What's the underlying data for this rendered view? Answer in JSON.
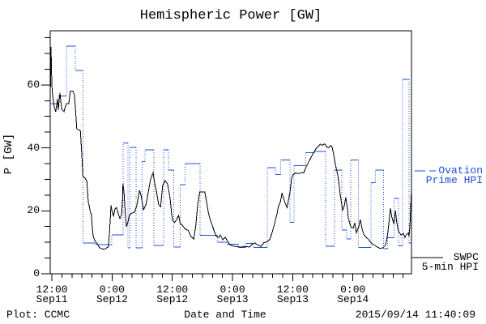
{
  "title": "Hemispheric Power [GW]",
  "footer": {
    "left": "Plot: CCMC",
    "right": "2015/09/14 11:40:09"
  },
  "legend": {
    "ovation": {
      "line1": "Ovation",
      "line2": "Prime HPI"
    },
    "swpc": {
      "line1": "SWPC",
      "line2": "5-min HPI"
    }
  },
  "colors": {
    "ovation_blue": "#1f4fd8",
    "swpc_black": "#000000",
    "frame": "#000000",
    "background": "#ffffff"
  },
  "chart_data": {
    "type": "line",
    "title": "Hemispheric Power [GW]",
    "xlabel": "Date and Time",
    "ylabel": "P [GW]",
    "ylim": [
      0,
      77.2
    ],
    "yticks": [
      0,
      20,
      40,
      60
    ],
    "y_minor_step": 5,
    "x_hours_span": 72,
    "x_start_label": "2015/09/11 11:40",
    "x_minor_step_hours": 2,
    "x_ticks": [
      {
        "hour": 0.333,
        "time": "12:00",
        "date": "Sep11"
      },
      {
        "hour": 12.333,
        "time": "0:00",
        "date": "Sep12"
      },
      {
        "hour": 24.333,
        "time": "12:00",
        "date": "Sep12"
      },
      {
        "hour": 36.333,
        "time": "0:00",
        "date": "Sep13"
      },
      {
        "hour": 48.333,
        "time": "12:00",
        "date": "Sep13"
      },
      {
        "hour": 60.333,
        "time": "0:00",
        "date": "Sep14"
      }
    ],
    "series": [
      {
        "name": "Ovation Prime HPI",
        "color": "#1f4fd8",
        "style": "step-dotted",
        "points": [
          [
            0,
            54
          ],
          [
            1.6,
            56.5
          ],
          [
            3.2,
            72.3
          ],
          [
            5.0,
            64.6
          ],
          [
            6.5,
            9.8
          ],
          [
            9.0,
            9.3
          ],
          [
            12.3,
            12.3
          ],
          [
            14.5,
            41.5
          ],
          [
            15.5,
            8.2
          ],
          [
            15.9,
            40.2
          ],
          [
            17.1,
            8.2
          ],
          [
            18.3,
            35.6
          ],
          [
            18.9,
            39.4
          ],
          [
            20.7,
            9.0
          ],
          [
            22.6,
            39.4
          ],
          [
            23.6,
            32.9
          ],
          [
            24.6,
            8.5
          ],
          [
            25.9,
            28.3
          ],
          [
            26.9,
            35.0
          ],
          [
            29.9,
            12.2
          ],
          [
            33.3,
            10.1
          ],
          [
            35.2,
            9.4
          ],
          [
            37.5,
            8.4
          ],
          [
            39.0,
            9.6
          ],
          [
            40.5,
            8.4
          ],
          [
            43.3,
            33.7
          ],
          [
            44.9,
            31.5
          ],
          [
            45.9,
            36.2
          ],
          [
            47.8,
            16.4
          ],
          [
            48.6,
            34.3
          ],
          [
            50.9,
            38.5
          ],
          [
            52.6,
            38.8
          ],
          [
            54.9,
            8.8
          ],
          [
            56.7,
            33
          ],
          [
            58.1,
            13.9
          ],
          [
            59.1,
            11.1
          ],
          [
            59.9,
            36.2
          ],
          [
            61.4,
            8.3
          ],
          [
            63.9,
            29
          ],
          [
            64.8,
            32.9
          ],
          [
            66.4,
            8.0
          ],
          [
            67.2,
            11.4
          ],
          [
            68.5,
            23.9
          ],
          [
            69.4,
            8.9
          ],
          [
            70.2,
            61.7
          ],
          [
            71.5,
            9.8
          ],
          [
            72,
            9.8
          ]
        ]
      },
      {
        "name": "SWPC 5-min HPI",
        "color": "#000000",
        "style": "line",
        "points": [
          [
            0,
            55
          ],
          [
            0.16,
            72
          ],
          [
            0.32,
            60
          ],
          [
            0.48,
            56.5
          ],
          [
            0.8,
            53
          ],
          [
            1.1,
            51.5
          ],
          [
            1.45,
            55.5
          ],
          [
            1.6,
            52
          ],
          [
            1.94,
            57.5
          ],
          [
            2.26,
            52.5
          ],
          [
            2.74,
            51.5
          ],
          [
            3.2,
            54
          ],
          [
            3.7,
            54
          ],
          [
            4.0,
            58
          ],
          [
            4.5,
            58
          ],
          [
            4.8,
            57
          ],
          [
            5.0,
            53
          ],
          [
            5.3,
            46
          ],
          [
            6.0,
            45.5
          ],
          [
            6.3,
            38
          ],
          [
            6.5,
            31
          ],
          [
            6.9,
            30.5
          ],
          [
            7.3,
            29.5
          ],
          [
            7.45,
            26
          ],
          [
            7.6,
            22.5
          ],
          [
            7.75,
            21.8
          ],
          [
            8.0,
            19.5
          ],
          [
            8.2,
            19
          ],
          [
            8.35,
            15.5
          ],
          [
            8.55,
            12
          ],
          [
            8.9,
            10.5
          ],
          [
            9.3,
            9.8
          ],
          [
            9.8,
            8.3
          ],
          [
            10.4,
            7.9
          ],
          [
            10.9,
            7.8
          ],
          [
            11.3,
            8.3
          ],
          [
            11.6,
            8.6
          ],
          [
            11.8,
            13
          ],
          [
            12.0,
            18
          ],
          [
            12.1,
            21.8
          ],
          [
            12.3,
            20
          ],
          [
            12.6,
            18.4
          ],
          [
            12.9,
            20.5
          ],
          [
            13.2,
            21
          ],
          [
            13.6,
            19
          ],
          [
            13.9,
            17.5
          ],
          [
            14.2,
            18.7
          ],
          [
            14.4,
            23
          ],
          [
            14.5,
            28.6
          ],
          [
            14.7,
            26
          ],
          [
            15.0,
            18.3
          ],
          [
            15.2,
            15
          ],
          [
            15.5,
            16.5
          ],
          [
            15.8,
            18.7
          ],
          [
            16.3,
            19.3
          ],
          [
            16.8,
            19.5
          ],
          [
            17.3,
            22
          ],
          [
            17.8,
            26.5
          ],
          [
            18.1,
            25
          ],
          [
            18.6,
            20.3
          ],
          [
            19.1,
            22.1
          ],
          [
            19.5,
            25.5
          ],
          [
            20.0,
            30
          ],
          [
            20.5,
            32.1
          ],
          [
            20.8,
            29
          ],
          [
            21.2,
            26
          ],
          [
            21.6,
            22
          ],
          [
            22.0,
            21.3
          ],
          [
            22.4,
            28
          ],
          [
            22.9,
            29.6
          ],
          [
            23.4,
            28.5
          ],
          [
            23.9,
            24
          ],
          [
            24.2,
            19
          ],
          [
            24.4,
            17
          ],
          [
            24.8,
            16.3
          ],
          [
            25.2,
            17.2
          ],
          [
            25.6,
            18.5
          ],
          [
            25.9,
            16
          ],
          [
            26.3,
            15.5
          ],
          [
            26.9,
            14.2
          ],
          [
            27.5,
            13.8
          ],
          [
            28.0,
            12
          ],
          [
            28.6,
            11
          ],
          [
            29.0,
            15
          ],
          [
            29.4,
            22
          ],
          [
            29.8,
            26
          ],
          [
            30.8,
            26
          ],
          [
            31.2,
            22.5
          ],
          [
            31.5,
            19.6
          ],
          [
            31.9,
            17
          ],
          [
            32.3,
            15.4
          ],
          [
            32.8,
            13
          ],
          [
            33.1,
            11.9
          ],
          [
            33.6,
            11.5
          ],
          [
            33.9,
            12.3
          ],
          [
            34.4,
            10.8
          ],
          [
            34.9,
            11.6
          ],
          [
            35.4,
            10.2
          ],
          [
            35.8,
            9.2
          ],
          [
            36.5,
            8.8
          ],
          [
            37.3,
            8.6
          ],
          [
            38.1,
            8.5
          ],
          [
            38.9,
            8.7
          ],
          [
            39.7,
            8.5
          ],
          [
            40.4,
            9.6
          ],
          [
            40.8,
            9.8
          ],
          [
            41.3,
            9.2
          ],
          [
            42.0,
            8.7
          ],
          [
            42.6,
            9.9
          ],
          [
            43.3,
            10.2
          ],
          [
            43.8,
            11
          ],
          [
            44.2,
            13
          ],
          [
            44.7,
            15.8
          ],
          [
            45.2,
            19
          ],
          [
            45.5,
            21.5
          ],
          [
            45.9,
            23
          ],
          [
            46.2,
            25.7
          ],
          [
            46.5,
            24
          ],
          [
            46.8,
            22.5
          ],
          [
            47.2,
            21
          ],
          [
            47.5,
            23.5
          ],
          [
            47.8,
            26
          ],
          [
            48.1,
            30.3
          ],
          [
            48.4,
            31.5
          ],
          [
            48.9,
            32
          ],
          [
            49.6,
            31.8
          ],
          [
            50.1,
            32.2
          ],
          [
            50.5,
            32
          ],
          [
            51.0,
            33.9
          ],
          [
            51.5,
            35.5
          ],
          [
            52.0,
            37
          ],
          [
            52.5,
            38.5
          ],
          [
            53.0,
            39.8
          ],
          [
            53.3,
            40.3
          ],
          [
            53.8,
            41.2
          ],
          [
            54.2,
            40.8
          ],
          [
            54.7,
            41.3
          ],
          [
            55.2,
            40.2
          ],
          [
            55.5,
            40
          ],
          [
            55.9,
            40.8
          ],
          [
            56.2,
            40.2
          ],
          [
            56.5,
            37.8
          ],
          [
            56.8,
            35
          ],
          [
            57.3,
            31.5
          ],
          [
            57.6,
            28
          ],
          [
            57.8,
            25.2
          ],
          [
            58.3,
            20.2
          ],
          [
            58.6,
            21.5
          ],
          [
            58.9,
            24.3
          ],
          [
            59.3,
            20
          ],
          [
            59.4,
            17.7
          ],
          [
            59.9,
            15
          ],
          [
            60.4,
            14.5
          ],
          [
            60.7,
            16.2
          ],
          [
            61.0,
            13
          ],
          [
            61.5,
            15
          ],
          [
            61.8,
            17.2
          ],
          [
            62.2,
            14
          ],
          [
            62.5,
            12.5
          ],
          [
            63.0,
            11.5
          ],
          [
            63.4,
            11
          ],
          [
            63.9,
            9.9
          ],
          [
            64.4,
            9.2
          ],
          [
            64.9,
            8.8
          ],
          [
            65.4,
            8.3
          ],
          [
            65.9,
            8
          ],
          [
            66.4,
            8.4
          ],
          [
            66.8,
            9
          ],
          [
            67.2,
            12
          ],
          [
            67.5,
            16
          ],
          [
            67.8,
            20.8
          ],
          [
            68.1,
            18
          ],
          [
            68.5,
            15.9
          ],
          [
            68.8,
            20
          ],
          [
            69.1,
            16
          ],
          [
            69.4,
            13.5
          ],
          [
            69.9,
            12.3
          ],
          [
            70.4,
            12.8
          ],
          [
            70.7,
            11.5
          ],
          [
            71.0,
            12.5
          ],
          [
            71.4,
            13
          ],
          [
            71.5,
            11.8
          ],
          [
            71.7,
            15
          ],
          [
            71.8,
            20
          ],
          [
            72,
            26.5
          ]
        ]
      }
    ]
  }
}
